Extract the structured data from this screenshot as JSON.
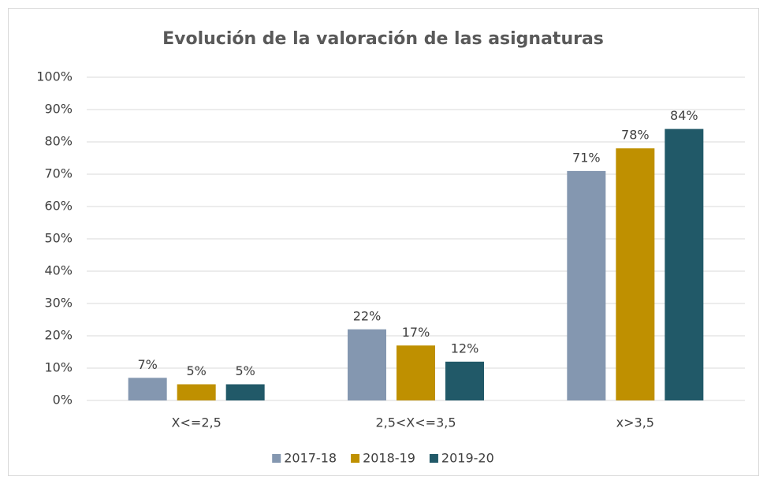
{
  "chart_data": {
    "type": "bar",
    "title": "Evolución de la valoración de las asignaturas",
    "categories": [
      "X<=2,5",
      "2,5<X<=3,5",
      "x>3,5"
    ],
    "series": [
      {
        "name": "2017-18",
        "color": "#8497b0",
        "values": [
          7,
          22,
          71
        ],
        "value_labels": [
          "7%",
          "22%",
          "71%"
        ]
      },
      {
        "name": "2018-19",
        "color": "#bf9000",
        "values": [
          5,
          17,
          78
        ],
        "value_labels": [
          "5%",
          "17%",
          "78%"
        ]
      },
      {
        "name": "2019-20",
        "color": "#215968",
        "values": [
          5,
          12,
          84
        ],
        "value_labels": [
          "5%",
          "12%",
          "84%"
        ]
      }
    ],
    "ylim": [
      0,
      100
    ],
    "yticks": [
      {
        "value": 0,
        "label": "0%"
      },
      {
        "value": 10,
        "label": "10%"
      },
      {
        "value": 20,
        "label": "20%"
      },
      {
        "value": 30,
        "label": "30%"
      },
      {
        "value": 40,
        "label": "40%"
      },
      {
        "value": 50,
        "label": "50%"
      },
      {
        "value": 60,
        "label": "60%"
      },
      {
        "value": 70,
        "label": "70%"
      },
      {
        "value": 80,
        "label": "80%"
      },
      {
        "value": 90,
        "label": "90%"
      },
      {
        "value": 100,
        "label": "100%"
      }
    ],
    "grid": true,
    "legend": "bottom"
  }
}
